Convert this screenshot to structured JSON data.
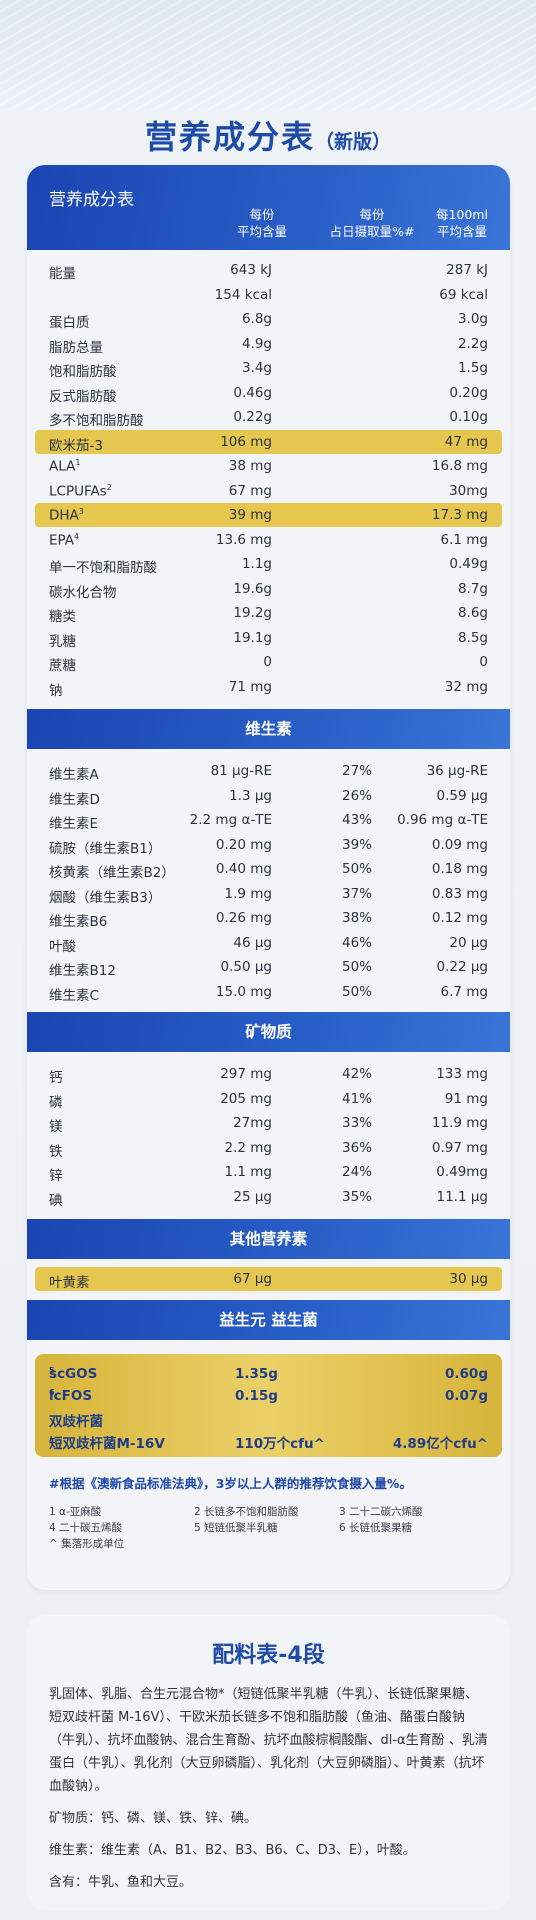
{
  "page": {
    "title": "营养成分表",
    "title_suffix": "（新版）"
  },
  "table": {
    "header_title": "营养成分表",
    "col1_line1": "每份",
    "col1_line2": "平均含量",
    "col2_line1": "每份",
    "col2_line2": "占日摄取量%#",
    "col3_line1": "每100ml",
    "col3_line2": "平均含量",
    "rows": [
      {
        "n": "能量",
        "v1": "643 kJ",
        "v3": "287 kJ"
      },
      {
        "n": "",
        "v1": "154 kcal",
        "v3": "69 kcal"
      },
      {
        "n": "蛋白质",
        "v1": "6.8g",
        "v3": "3.0g"
      },
      {
        "n": "脂肪总量",
        "v1": "4.9g",
        "v3": "2.2g"
      },
      {
        "n": "饱和脂肪酸",
        "v1": "3.4g",
        "v3": "1.5g"
      },
      {
        "n": "反式脂肪酸",
        "v1": "0.46g",
        "v3": "0.20g"
      },
      {
        "n": "多不饱和脂肪酸",
        "v1": "0.22g",
        "v3": "0.10g"
      },
      {
        "n": "欧米茄-3",
        "v1": "106 mg",
        "v3": "47 mg"
      },
      {
        "n": "ALA",
        "sup": "1",
        "v1": "38 mg",
        "v3": "16.8 mg"
      },
      {
        "n": "LCPUFAs",
        "sup": "2",
        "v1": "67 mg",
        "v3": "30mg"
      },
      {
        "n": "DHA",
        "sup": "3",
        "v1": "39 mg",
        "v3": "17.3 mg"
      },
      {
        "n": "EPA",
        "sup": "4",
        "v1": "13.6 mg",
        "v3": "6.1 mg"
      },
      {
        "n": "单一不饱和脂肪酸",
        "v1": "1.1g",
        "v3": "0.49g"
      },
      {
        "n": "碳水化合物",
        "v1": "19.6g",
        "v3": "8.7g"
      },
      {
        "n": "糖类",
        "v1": "19.2g",
        "v3": "8.6g"
      },
      {
        "n": "乳糖",
        "v1": "19.1g",
        "v3": "8.5g"
      },
      {
        "n": "蔗糖",
        "v1": "0",
        "v3": "0"
      },
      {
        "n": "钠",
        "v1": "71 mg",
        "v3": "32 mg"
      }
    ]
  },
  "vitamins": {
    "title": "维生素",
    "rows": [
      {
        "n": "维生素A",
        "v1": "81 µg-RE",
        "v2": "27%",
        "v3": "36 µg-RE"
      },
      {
        "n": "维生素D",
        "v1": "1.3 µg",
        "v2": "26%",
        "v3": "0.59 µg"
      },
      {
        "n": "维生素E",
        "v1": "2.2 mg α-TE",
        "v2": "43%",
        "v3": "0.96 mg α-TE"
      },
      {
        "n": "硫胺（维生素B1）",
        "v1": "0.20 mg",
        "v2": "39%",
        "v3": "0.09 mg"
      },
      {
        "n": "核黄素（维生素B2）",
        "v1": "0.40 mg",
        "v2": "50%",
        "v3": "0.18 mg"
      },
      {
        "n": "烟酸（维生素B3）",
        "v1": "1.9 mg",
        "v2": "37%",
        "v3": "0.83 mg"
      },
      {
        "n": "维生素B6",
        "v1": "0.26 mg",
        "v2": "38%",
        "v3": "0.12 mg"
      },
      {
        "n": "叶酸",
        "v1": "46 µg",
        "v2": "46%",
        "v3": "20 µg"
      },
      {
        "n": "维生素B12",
        "v1": "0.50 µg",
        "v2": "50%",
        "v3": "0.22 µg"
      },
      {
        "n": "维生素C",
        "v1": "15.0 mg",
        "v2": "50%",
        "v3": "6.7 mg"
      }
    ]
  },
  "minerals": {
    "title": "矿物质",
    "rows": [
      {
        "n": "钙",
        "v1": "297 mg",
        "v2": "42%",
        "v3": "133 mg"
      },
      {
        "n": "磷",
        "v1": "205 mg",
        "v2": "41%",
        "v3": "91 mg"
      },
      {
        "n": "镁",
        "v1": "27mg",
        "v2": "33%",
        "v3": "11.9 mg"
      },
      {
        "n": "铁",
        "v1": "2.2 mg",
        "v2": "36%",
        "v3": "0.97 mg"
      },
      {
        "n": "锌",
        "v1": "1.1 mg",
        "v2": "24%",
        "v3": "0.49mg"
      },
      {
        "n": "碘",
        "v1": "25 µg",
        "v2": "35%",
        "v3": "11.1 µg"
      }
    ]
  },
  "other": {
    "title": "其他营养素",
    "row": {
      "n": "叶黄素",
      "v1": "67 µg",
      "v3": "30 µg"
    }
  },
  "probiotics": {
    "title": "益生元 益生菌",
    "r1": {
      "n": "scGOS",
      "sup": "5",
      "v1": "1.35g",
      "v3": "0.60g"
    },
    "r2": {
      "n": "lcFOS",
      "sup": "6",
      "v1": "0.15g",
      "v3": "0.07g"
    },
    "r3": {
      "n": "双歧杆菌"
    },
    "r4": {
      "n": "短双歧杆菌M-16V",
      "v1": "110万个cfu^",
      "v3": "4.89亿个cfu^"
    }
  },
  "notes": {
    "main": "#根据《澳新食品标准法典》，3岁以上人群的推荐饮食摄入量%。",
    "f1": "1 α-亚麻酸",
    "f2": "2 长链多不饱和脂肪酸",
    "f3": "3 二十二碳六烯酸",
    "f4": "4 二十碳五烯酸",
    "f5": "5 短链低聚半乳糖",
    "f6": "6 长链低聚果糖",
    "f7": "^ 集落形成单位"
  },
  "ingredients": {
    "title": "配料表-4段",
    "p1": "乳固体、乳脂、合生元混合物*（短链低聚半乳糖（牛乳）、长链低聚果糖、短双歧杆菌 M-16V）、干欧米茄长链多不饱和脂肪酸（鱼油、酪蛋白酸钠（牛乳）、抗坏血酸钠、混合生育酚、抗坏血酸棕榈酸酯、dl-α生育酚 、乳清蛋白（牛乳）、乳化剂（大豆卵磷脂）、乳化剂（大豆卵磷脂）、叶黄素（抗坏血酸钠）。",
    "p2": "矿物质：钙、磷、镁、铁、锌、碘。",
    "p3": "维生素：维生素（A、B1、B2、B3、B6、C、D3、E），叶酸。",
    "p4": "含有：牛乳、鱼和大豆。"
  }
}
